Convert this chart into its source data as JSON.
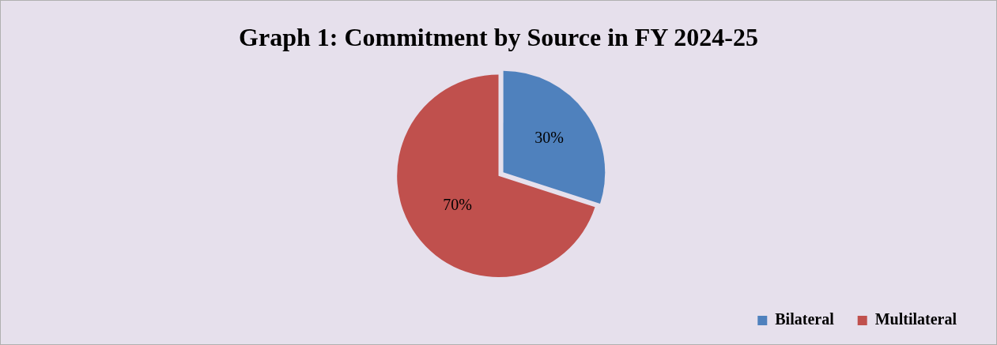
{
  "chart_data": {
    "type": "pie",
    "title": "Graph 1: Commitment by Source in FY 2024-25",
    "categories": [
      "Bilateral",
      "Multilateral"
    ],
    "values": [
      30,
      70
    ],
    "colors": [
      "#4f81bd",
      "#c0504d"
    ],
    "value_labels": [
      "30%",
      "70%"
    ],
    "legend": "bottom right"
  }
}
